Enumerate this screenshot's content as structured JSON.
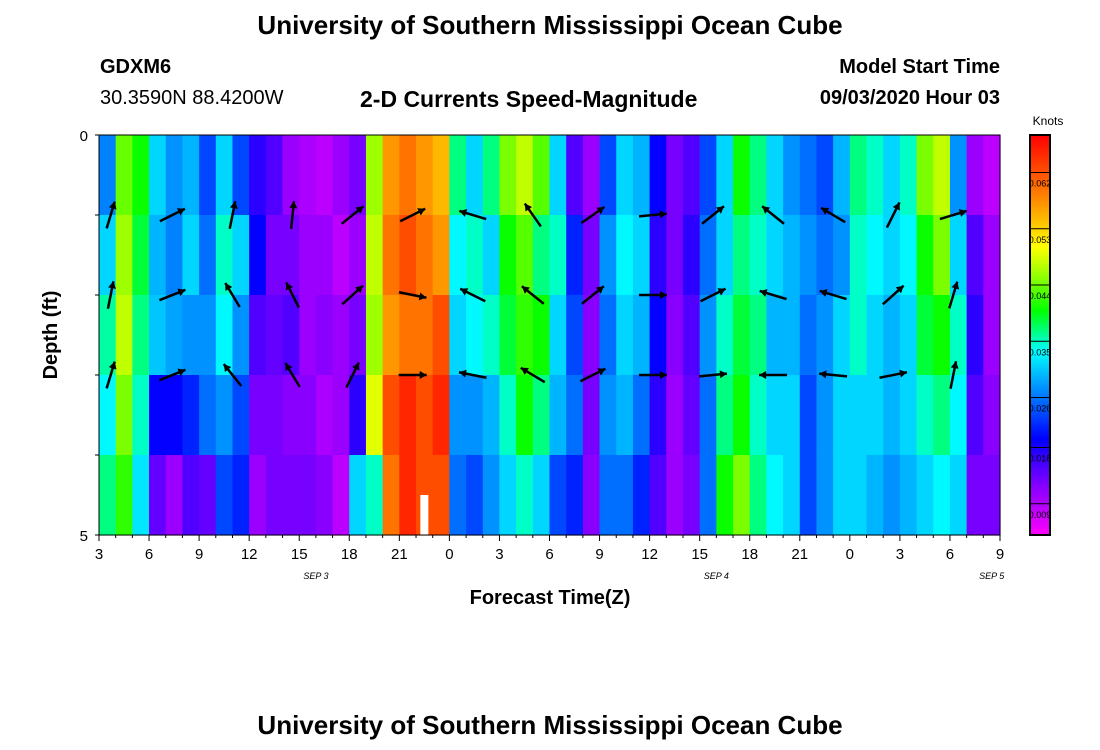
{
  "header": {
    "title": "University of Southern Mississippi Ocean Cube",
    "station_id": "GDXM6",
    "station_coords": "30.3590N 88.4200W",
    "chart_title": "2-D Currents Speed-Magnitude",
    "model_label": "Model Start Time",
    "model_time": "09/03/2020 Hour 03"
  },
  "footer": {
    "title": "University of Southern Mississippi Ocean Cube"
  },
  "colors": {
    "palette": [
      "#ff00ff",
      "#8800ff",
      "#0000ff",
      "#0088ff",
      "#00ffff",
      "#00ff00",
      "#88ff00",
      "#ffff00",
      "#ff8800",
      "#ff0000"
    ]
  },
  "chart_data": {
    "type": "heatmap",
    "xlabel": "Forecast Time(Z)",
    "ylabel": "Depth (ft)",
    "ylim": [
      0,
      5
    ],
    "y_ticks": [
      "0",
      "5"
    ],
    "x_tick_labels": [
      "3",
      "6",
      "9",
      "12",
      "15",
      "18",
      "21",
      "0",
      "3",
      "6",
      "9",
      "12",
      "15",
      "18",
      "21",
      "0",
      "3",
      "6",
      "9"
    ],
    "date_labels": [
      {
        "text": "SEP 3",
        "at_hour": 13
      },
      {
        "text": "SEP 4",
        "at_hour": 37
      },
      {
        "text": "SEP 5",
        "at_hour": 53.5
      }
    ],
    "x_range_hours": [
      0,
      54
    ],
    "colorbar": {
      "unit": "Knots",
      "range": [
        0.004,
        0.068
      ],
      "ticks": [
        "0.062",
        "0.053",
        "0.044",
        "0.035",
        "0.026",
        "0.018",
        "0.009"
      ],
      "tick_values": [
        0.062,
        0.053,
        0.044,
        0.035,
        0.026,
        0.018,
        0.009
      ]
    },
    "columns": [
      {
        "cat": "3",
        "values": [
          0.025,
          0.03,
          0.035,
          0.032,
          0.036
        ]
      },
      {
        "cat": "4",
        "values": [
          0.045,
          0.048,
          0.05,
          0.046,
          0.042
        ]
      },
      {
        "cat": "5",
        "values": [
          0.04,
          0.038,
          0.036,
          0.034,
          0.031
        ]
      },
      {
        "cat": "6",
        "values": [
          0.03,
          0.028,
          0.029,
          0.018,
          0.013
        ]
      },
      {
        "cat": "7",
        "values": [
          0.026,
          0.025,
          0.027,
          0.018,
          0.01
        ]
      },
      {
        "cat": "8",
        "values": [
          0.028,
          0.03,
          0.026,
          0.02,
          0.014
        ]
      },
      {
        "cat": "9",
        "values": [
          0.022,
          0.024,
          0.026,
          0.024,
          0.013
        ]
      },
      {
        "cat": "10",
        "values": [
          0.03,
          0.034,
          0.032,
          0.026,
          0.022
        ]
      },
      {
        "cat": "11",
        "values": [
          0.022,
          0.03,
          0.026,
          0.022,
          0.02
        ]
      },
      {
        "cat": "12",
        "values": [
          0.016,
          0.018,
          0.014,
          0.012,
          0.01
        ]
      },
      {
        "cat": "13",
        "values": [
          0.014,
          0.012,
          0.013,
          0.012,
          0.012
        ]
      },
      {
        "cat": "14",
        "values": [
          0.01,
          0.012,
          0.014,
          0.011,
          0.012
        ]
      },
      {
        "cat": "15",
        "values": [
          0.009,
          0.01,
          0.01,
          0.011,
          0.012
        ]
      },
      {
        "cat": "16",
        "values": [
          0.008,
          0.01,
          0.011,
          0.009,
          0.011
        ]
      },
      {
        "cat": "17",
        "values": [
          0.01,
          0.008,
          0.01,
          0.01,
          0.008
        ]
      },
      {
        "cat": "18",
        "values": [
          0.012,
          0.01,
          0.012,
          0.016,
          0.03
        ]
      },
      {
        "cat": "19",
        "values": [
          0.048,
          0.05,
          0.048,
          0.052,
          0.034
        ]
      },
      {
        "cat": "20",
        "values": [
          0.06,
          0.062,
          0.06,
          0.064,
          0.062
        ]
      },
      {
        "cat": "21",
        "values": [
          0.062,
          0.064,
          0.062,
          0.066,
          0.066
        ]
      },
      {
        "cat": "22",
        "values": [
          0.06,
          0.062,
          0.062,
          0.064,
          0.064
        ]
      },
      {
        "cat": "23",
        "values": [
          0.058,
          0.06,
          0.064,
          0.066,
          0.064
        ]
      },
      {
        "cat": "0",
        "values": [
          0.036,
          0.032,
          0.03,
          0.026,
          0.024
        ]
      },
      {
        "cat": "1",
        "values": [
          0.03,
          0.034,
          0.032,
          0.026,
          0.022
        ]
      },
      {
        "cat": "2",
        "values": [
          0.036,
          0.03,
          0.034,
          0.028,
          0.026
        ]
      },
      {
        "cat": "3",
        "values": [
          0.046,
          0.04,
          0.038,
          0.034,
          0.03
        ]
      },
      {
        "cat": "4",
        "values": [
          0.05,
          0.044,
          0.042,
          0.04,
          0.034
        ]
      },
      {
        "cat": "5",
        "values": [
          0.044,
          0.036,
          0.04,
          0.036,
          0.03
        ]
      },
      {
        "cat": "6",
        "values": [
          0.03,
          0.034,
          0.03,
          0.028,
          0.022
        ]
      },
      {
        "cat": "7",
        "values": [
          0.014,
          0.02,
          0.022,
          0.024,
          0.02
        ]
      },
      {
        "cat": "8",
        "values": [
          0.01,
          0.012,
          0.011,
          0.012,
          0.011
        ]
      },
      {
        "cat": "9",
        "values": [
          0.022,
          0.026,
          0.024,
          0.026,
          0.024
        ]
      },
      {
        "cat": "10",
        "values": [
          0.03,
          0.032,
          0.03,
          0.028,
          0.024
        ]
      },
      {
        "cat": "11",
        "values": [
          0.028,
          0.03,
          0.028,
          0.024,
          0.02
        ]
      },
      {
        "cat": "12",
        "values": [
          0.018,
          0.016,
          0.018,
          0.016,
          0.014
        ]
      },
      {
        "cat": "13",
        "values": [
          0.012,
          0.012,
          0.011,
          0.01,
          0.01
        ]
      },
      {
        "cat": "14",
        "values": [
          0.014,
          0.016,
          0.014,
          0.013,
          0.012
        ]
      },
      {
        "cat": "15",
        "values": [
          0.022,
          0.024,
          0.026,
          0.024,
          0.024
        ]
      },
      {
        "cat": "16",
        "values": [
          0.03,
          0.03,
          0.034,
          0.036,
          0.04
        ]
      },
      {
        "cat": "17",
        "values": [
          0.04,
          0.036,
          0.038,
          0.04,
          0.046
        ]
      },
      {
        "cat": "18",
        "values": [
          0.036,
          0.034,
          0.036,
          0.034,
          0.036
        ]
      },
      {
        "cat": "19",
        "values": [
          0.03,
          0.03,
          0.028,
          0.03,
          0.032
        ]
      },
      {
        "cat": "20",
        "values": [
          0.026,
          0.028,
          0.028,
          0.03,
          0.03
        ]
      },
      {
        "cat": "21",
        "values": [
          0.024,
          0.026,
          0.024,
          0.022,
          0.022
        ]
      },
      {
        "cat": "22",
        "values": [
          0.022,
          0.024,
          0.026,
          0.026,
          0.026
        ]
      },
      {
        "cat": "23",
        "values": [
          0.028,
          0.026,
          0.03,
          0.03,
          0.03
        ]
      },
      {
        "cat": "0",
        "values": [
          0.036,
          0.034,
          0.034,
          0.03,
          0.03
        ]
      },
      {
        "cat": "1",
        "values": [
          0.034,
          0.032,
          0.03,
          0.03,
          0.028
        ]
      },
      {
        "cat": "2",
        "values": [
          0.03,
          0.03,
          0.028,
          0.028,
          0.026
        ]
      },
      {
        "cat": "3",
        "values": [
          0.034,
          0.032,
          0.03,
          0.03,
          0.028
        ]
      },
      {
        "cat": "4",
        "values": [
          0.046,
          0.04,
          0.038,
          0.034,
          0.03
        ]
      },
      {
        "cat": "5",
        "values": [
          0.05,
          0.046,
          0.04,
          0.036,
          0.032
        ]
      },
      {
        "cat": "6",
        "values": [
          0.026,
          0.03,
          0.034,
          0.032,
          0.03
        ]
      },
      {
        "cat": "7",
        "values": [
          0.01,
          0.014,
          0.016,
          0.014,
          0.012
        ]
      },
      {
        "cat": "8",
        "values": [
          0.008,
          0.01,
          0.01,
          0.011,
          0.012
        ]
      }
    ],
    "special_cell": {
      "hour": 19,
      "depth_ft": 4.5,
      "color": "#ffffff"
    },
    "vectors": [
      {
        "hour": 0.7,
        "depth_ft": 1,
        "dx": 0.3,
        "dy": -1
      },
      {
        "hour": 4.4,
        "depth_ft": 1,
        "dx": 1,
        "dy": -0.5
      },
      {
        "hour": 8.0,
        "depth_ft": 1,
        "dx": 0.2,
        "dy": -1
      },
      {
        "hour": 11.6,
        "depth_ft": 1,
        "dx": 0.1,
        "dy": -1
      },
      {
        "hour": 15.2,
        "depth_ft": 1,
        "dx": 1,
        "dy": -0.8
      },
      {
        "hour": 18.8,
        "depth_ft": 1,
        "dx": 1,
        "dy": -0.5
      },
      {
        "hour": 22.4,
        "depth_ft": 1,
        "dx": -1,
        "dy": -0.3
      },
      {
        "hour": 26.0,
        "depth_ft": 1,
        "dx": -0.7,
        "dy": -1
      },
      {
        "hour": 29.6,
        "depth_ft": 1,
        "dx": 1,
        "dy": -0.7
      },
      {
        "hour": 33.2,
        "depth_ft": 1,
        "dx": 1,
        "dy": -0.1
      },
      {
        "hour": 36.8,
        "depth_ft": 1,
        "dx": 1,
        "dy": -0.8
      },
      {
        "hour": 40.4,
        "depth_ft": 1,
        "dx": -1,
        "dy": -0.8
      },
      {
        "hour": 44.0,
        "depth_ft": 1,
        "dx": -1,
        "dy": -0.6
      },
      {
        "hour": 47.6,
        "depth_ft": 1,
        "dx": 0.5,
        "dy": -1
      },
      {
        "hour": 51.2,
        "depth_ft": 1,
        "dx": 1,
        "dy": -0.3
      },
      {
        "hour": 0.7,
        "depth_ft": 2,
        "dx": 0.2,
        "dy": -1
      },
      {
        "hour": 4.4,
        "depth_ft": 2,
        "dx": 1,
        "dy": -0.4
      },
      {
        "hour": 8.0,
        "depth_ft": 2,
        "dx": -0.6,
        "dy": -1
      },
      {
        "hour": 11.6,
        "depth_ft": 2,
        "dx": -0.5,
        "dy": -1
      },
      {
        "hour": 15.2,
        "depth_ft": 2,
        "dx": 1,
        "dy": -0.9
      },
      {
        "hour": 18.8,
        "depth_ft": 2,
        "dx": 1,
        "dy": 0.2
      },
      {
        "hour": 22.4,
        "depth_ft": 2,
        "dx": -1,
        "dy": -0.5
      },
      {
        "hour": 26.0,
        "depth_ft": 2,
        "dx": -1,
        "dy": -0.8
      },
      {
        "hour": 29.6,
        "depth_ft": 2,
        "dx": 1,
        "dy": -0.8
      },
      {
        "hour": 33.2,
        "depth_ft": 2,
        "dx": 1,
        "dy": 0
      },
      {
        "hour": 36.8,
        "depth_ft": 2,
        "dx": 1,
        "dy": -0.5
      },
      {
        "hour": 40.4,
        "depth_ft": 2,
        "dx": -1,
        "dy": -0.3
      },
      {
        "hour": 44.0,
        "depth_ft": 2,
        "dx": -1,
        "dy": -0.3
      },
      {
        "hour": 47.6,
        "depth_ft": 2,
        "dx": 1,
        "dy": -0.9
      },
      {
        "hour": 51.2,
        "depth_ft": 2,
        "dx": 0.3,
        "dy": -1
      },
      {
        "hour": 0.7,
        "depth_ft": 3,
        "dx": 0.3,
        "dy": -1
      },
      {
        "hour": 4.4,
        "depth_ft": 3,
        "dx": 1,
        "dy": -0.4
      },
      {
        "hour": 8.0,
        "depth_ft": 3,
        "dx": -0.8,
        "dy": -1
      },
      {
        "hour": 11.6,
        "depth_ft": 3,
        "dx": -0.6,
        "dy": -1
      },
      {
        "hour": 15.2,
        "depth_ft": 3,
        "dx": 0.5,
        "dy": -1
      },
      {
        "hour": 18.8,
        "depth_ft": 3,
        "dx": 1,
        "dy": 0
      },
      {
        "hour": 22.4,
        "depth_ft": 3,
        "dx": -1,
        "dy": -0.2
      },
      {
        "hour": 26.0,
        "depth_ft": 3,
        "dx": -1,
        "dy": -0.6
      },
      {
        "hour": 29.6,
        "depth_ft": 3,
        "dx": 1,
        "dy": -0.5
      },
      {
        "hour": 33.2,
        "depth_ft": 3,
        "dx": 1,
        "dy": 0
      },
      {
        "hour": 36.8,
        "depth_ft": 3,
        "dx": 1,
        "dy": -0.1
      },
      {
        "hour": 40.4,
        "depth_ft": 3,
        "dx": -1,
        "dy": 0
      },
      {
        "hour": 44.0,
        "depth_ft": 3,
        "dx": -1,
        "dy": -0.1
      },
      {
        "hour": 47.6,
        "depth_ft": 3,
        "dx": 1,
        "dy": -0.2
      },
      {
        "hour": 51.2,
        "depth_ft": 3,
        "dx": 0.2,
        "dy": -1
      }
    ]
  }
}
